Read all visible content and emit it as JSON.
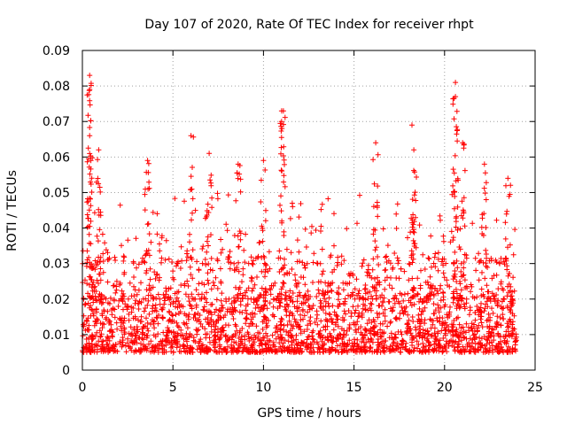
{
  "chart_data": {
    "type": "scatter",
    "title": "Day 107 of 2020, Rate Of TEC Index for receiver rhpt",
    "xlabel": "GPS time / hours",
    "ylabel": "ROTI / TECUs",
    "xlim": [
      0,
      25
    ],
    "ylim": [
      0,
      0.09
    ],
    "xticks": [
      "0",
      "5",
      "10",
      "15",
      "20",
      "25"
    ],
    "yticks": [
      "0",
      "0.01",
      "0.02",
      "0.03",
      "0.04",
      "0.05",
      "0.06",
      "0.07",
      "0.08",
      "0.09"
    ],
    "grid": true,
    "marker": "plus",
    "color": "#ff0000",
    "x_range_of_data": [
      0,
      24
    ],
    "typical_band": [
      0.005,
      0.02
    ],
    "peaks": [
      {
        "x": 0.4,
        "y": 0.083
      },
      {
        "x": 0.4,
        "y": 0.079
      },
      {
        "x": 0.4,
        "y": 0.066
      },
      {
        "x": 0.9,
        "y": 0.062
      },
      {
        "x": 3.6,
        "y": 0.059
      },
      {
        "x": 6.0,
        "y": 0.066
      },
      {
        "x": 7.0,
        "y": 0.061
      },
      {
        "x": 8.6,
        "y": 0.058
      },
      {
        "x": 10.0,
        "y": 0.059
      },
      {
        "x": 11.1,
        "y": 0.073
      },
      {
        "x": 11.0,
        "y": 0.07
      },
      {
        "x": 16.2,
        "y": 0.064
      },
      {
        "x": 18.2,
        "y": 0.069
      },
      {
        "x": 18.3,
        "y": 0.062
      },
      {
        "x": 20.6,
        "y": 0.081
      },
      {
        "x": 20.6,
        "y": 0.077
      },
      {
        "x": 21.0,
        "y": 0.064
      },
      {
        "x": 22.2,
        "y": 0.058
      },
      {
        "x": 23.5,
        "y": 0.054
      }
    ]
  }
}
